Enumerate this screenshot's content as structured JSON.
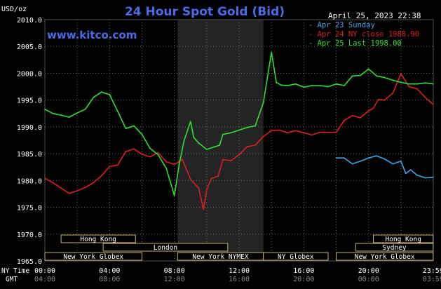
{
  "header": {
    "unit": "USD/oz",
    "title": "24 Hour Spot Gold (Bid)",
    "timestamp": "April 25, 2023 22:38",
    "site": "www.kitco.com"
  },
  "legend": [
    {
      "label": "Apr 23 Sunday",
      "color": "#35a8e8"
    },
    {
      "label": "Apr 24 NY close 1988.90",
      "color": "#e01e1e"
    },
    {
      "label": "Apr 25 Last 1998.00",
      "color": "#2de22d"
    }
  ],
  "axis": {
    "y_ticks": [
      "2010.0",
      "2005.0",
      "2000.0",
      "1995.0",
      "1990.0",
      "1985.0",
      "1980.0",
      "1975.0",
      "1970.0",
      "1965.0"
    ],
    "x_ticks_ny": [
      "00:00",
      "04:00",
      "08:00",
      "12:00",
      "16:00",
      "20:00",
      "23:59"
    ],
    "x_ticks_gmt": [
      "04:00",
      "08:00",
      "12:00",
      "16:00",
      "20:00",
      "00:00",
      "03:59"
    ],
    "ny_label": "NY Time",
    "gmt_label": "GMT"
  },
  "sessions": [
    {
      "label": "Hong Kong",
      "row": 0,
      "start": 1.0,
      "end": 5.6
    },
    {
      "label": "Hong Kong",
      "row": 0,
      "start": 20.3,
      "end": 23.99
    },
    {
      "label": "London",
      "row": 1,
      "start": 3.6,
      "end": 11.3
    },
    {
      "label": "Sydney",
      "row": 1,
      "start": 19.2,
      "end": 23.99
    },
    {
      "label": "New York Globex",
      "row": 2,
      "start": 0.0,
      "end": 6.0
    },
    {
      "label": "New York NYMEX",
      "row": 2,
      "start": 8.2,
      "end": 13.5
    },
    {
      "label": "NY Globex",
      "row": 2,
      "start": 13.5,
      "end": 17.5
    },
    {
      "label": "New York Globex",
      "row": 2,
      "start": 18.0,
      "end": 23.99
    }
  ],
  "chart_data": {
    "type": "line",
    "title": "24 Hour Spot Gold (Bid)",
    "xlabel": "NY Time",
    "ylabel": "USD/oz",
    "xlim": [
      0,
      24
    ],
    "ylim": [
      1965,
      2010
    ],
    "grid": true,
    "legend_position": "top-right",
    "highlight_band": [
      8.2,
      13.5
    ],
    "series": [
      {
        "name": "Apr 23 Sunday",
        "color": "#35a8e8",
        "x": [
          18.0,
          18.5,
          19.0,
          19.5,
          20.0,
          20.5,
          21.0,
          21.5,
          22.0,
          22.3,
          22.6,
          23.0,
          23.5,
          23.99
        ],
        "y": [
          1984.2,
          1984.2,
          1983.1,
          1983.6,
          1984.2,
          1984.6,
          1984.0,
          1983.1,
          1983.6,
          1981.3,
          1982.0,
          1981.0,
          1980.5,
          1980.6
        ]
      },
      {
        "name": "Apr 24 NY close 1988.90",
        "color": "#e01e1e",
        "x": [
          0.0,
          0.5,
          1.0,
          1.5,
          2.0,
          2.5,
          3.0,
          3.5,
          4.0,
          4.5,
          5.0,
          5.5,
          6.0,
          6.5,
          7.0,
          7.5,
          8.0,
          8.5,
          9.0,
          9.5,
          9.8,
          10.0,
          10.3,
          10.7,
          11.0,
          11.5,
          12.0,
          12.5,
          13.0,
          13.5,
          14.0,
          14.5,
          15.0,
          15.5,
          16.0,
          16.5,
          17.0,
          17.5,
          18.0,
          18.5,
          19.0,
          19.5,
          20.0,
          20.3,
          20.6,
          21.0,
          21.5,
          22.0,
          22.5,
          23.0,
          23.5,
          23.99
        ],
        "y": [
          1980.4,
          1979.6,
          1978.6,
          1977.6,
          1978.1,
          1978.7,
          1979.6,
          1980.9,
          1982.6,
          1982.9,
          1985.4,
          1985.9,
          1984.9,
          1984.4,
          1985.2,
          1983.5,
          1983.0,
          1983.9,
          1980.2,
          1978.6,
          1974.6,
          1978.3,
          1980.4,
          1980.8,
          1983.9,
          1983.7,
          1984.8,
          1986.3,
          1986.6,
          1988.2,
          1989.3,
          1989.4,
          1988.9,
          1989.3,
          1988.9,
          1988.5,
          1989.0,
          1989.0,
          1989.0,
          1991.2,
          1992.1,
          1991.7,
          1993.0,
          1993.5,
          1995.1,
          1995.0,
          1996.3,
          1999.9,
          1997.5,
          1997.1,
          1995.5,
          1994.2
        ]
      },
      {
        "name": "Apr 25 Last 1998.00",
        "color": "#2de22d",
        "x": [
          0.0,
          0.5,
          1.0,
          1.5,
          2.0,
          2.5,
          3.0,
          3.5,
          4.0,
          4.5,
          5.0,
          5.5,
          6.0,
          6.5,
          7.0,
          7.5,
          8.0,
          8.3,
          8.6,
          9.0,
          9.2,
          9.5,
          10.0,
          10.5,
          10.8,
          11.0,
          11.5,
          12.0,
          12.5,
          13.0,
          13.5,
          14.0,
          14.3,
          14.6,
          15.0,
          15.5,
          16.0,
          16.5,
          17.0,
          17.5,
          18.0,
          18.5,
          19.0,
          19.5,
          20.0,
          20.5,
          21.0,
          21.5,
          22.0,
          22.5,
          23.0,
          23.5,
          23.99
        ],
        "y": [
          1993.3,
          1992.5,
          1992.2,
          1991.8,
          1992.6,
          1993.3,
          1995.5,
          1996.5,
          1996.0,
          1992.9,
          1989.7,
          1990.2,
          1988.6,
          1986.0,
          1984.8,
          1982.3,
          1977.2,
          1983.0,
          1987.4,
          1991.0,
          1988.0,
          1987.0,
          1985.8,
          1986.3,
          1986.6,
          1988.6,
          1988.9,
          1989.4,
          1989.9,
          1990.2,
          1994.5,
          2003.9,
          1998.3,
          1997.8,
          1997.7,
          1998.0,
          1997.4,
          1997.7,
          1997.7,
          1997.5,
          1998.0,
          1997.7,
          1999.5,
          1999.6,
          2000.8,
          1999.5,
          1999.2,
          1998.7,
          1998.3,
          1998.0,
          1998.0,
          1998.2,
          1998.0
        ]
      }
    ]
  }
}
